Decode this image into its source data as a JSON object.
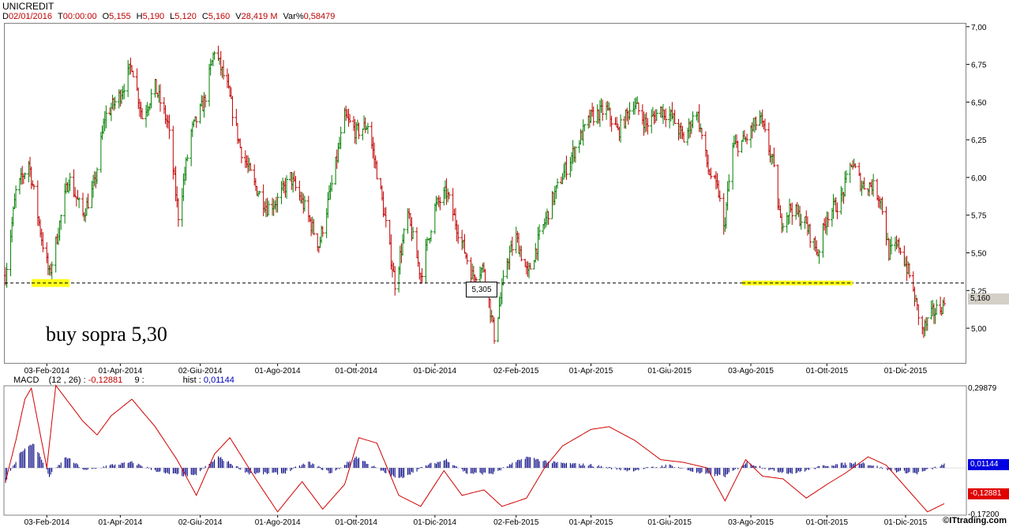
{
  "header": {
    "title": "UNICREDIT",
    "ohlc": [
      {
        "k": "D",
        "v": "02/01/2016"
      },
      {
        "k": "T",
        "v": "00:00:00"
      },
      {
        "k": "O",
        "v": "5,155"
      },
      {
        "k": "H",
        "v": "5,190"
      },
      {
        "k": "L",
        "v": "5,120"
      },
      {
        "k": "C",
        "v": "5,160"
      },
      {
        "k": "V",
        "v": "28,419 M"
      },
      {
        "k": "Var%",
        "v": "0,58479"
      }
    ]
  },
  "annotations": {
    "buy_text": "buy sopra 5,30",
    "callout_value": "5,305",
    "last_price_tag": "5,160",
    "macd_tag": "-0,12881",
    "hist_tag": "0,01144",
    "brand": "©ITtrading.com"
  },
  "macd_header": {
    "label": "MACD",
    "params": "(12 , 26)  :",
    "value": "-0,12881",
    "signal": "9  :",
    "hist_label": "hist :",
    "hist_value": "0,01144"
  },
  "colors": {
    "up": "#008000",
    "down": "#c00000",
    "macd_line": "#d00000",
    "hist": "#000080",
    "highlight": "#ffff00",
    "support_line": "#000000"
  },
  "chart_data": [
    {
      "type": "candlestick",
      "title": "UNICREDIT",
      "x_ticks": [
        "03-Feb-2014",
        "01-Apr-2014",
        "02-Giu-2014",
        "01-Ago-2014",
        "01-Ott-2014",
        "01-Dic-2014",
        "02-Feb-2015",
        "01-Apr-2015",
        "01-Giu-2015",
        "03-Ago-2015",
        "01-Ott-2015",
        "01-Dic-2015"
      ],
      "y_ticks": [
        "7,00",
        "6,75",
        "6,50",
        "6,25",
        "6,00",
        "5,75",
        "5,50",
        "5,25",
        "5,00"
      ],
      "ylim": [
        4.77,
        7.02
      ],
      "support_level": 5.3,
      "anchors": [
        {
          "d": "2014-01-02",
          "p": 5.35
        },
        {
          "d": "2014-01-10",
          "p": 5.9
        },
        {
          "d": "2014-01-20",
          "p": 6.1
        },
        {
          "d": "2014-01-30",
          "p": 5.6
        },
        {
          "d": "2014-02-05",
          "p": 5.35
        },
        {
          "d": "2014-02-12",
          "p": 5.65
        },
        {
          "d": "2014-02-20",
          "p": 6.0
        },
        {
          "d": "2014-03-03",
          "p": 5.75
        },
        {
          "d": "2014-03-12",
          "p": 5.95
        },
        {
          "d": "2014-03-20",
          "p": 6.4
        },
        {
          "d": "2014-04-01",
          "p": 6.55
        },
        {
          "d": "2014-04-10",
          "p": 6.75
        },
        {
          "d": "2014-04-18",
          "p": 6.4
        },
        {
          "d": "2014-04-28",
          "p": 6.6
        },
        {
          "d": "2014-05-08",
          "p": 6.35
        },
        {
          "d": "2014-05-16",
          "p": 5.75
        },
        {
          "d": "2014-05-26",
          "p": 6.3
        },
        {
          "d": "2014-06-05",
          "p": 6.5
        },
        {
          "d": "2014-06-13",
          "p": 6.85
        },
        {
          "d": "2014-06-23",
          "p": 6.6
        },
        {
          "d": "2014-07-03",
          "p": 6.2
        },
        {
          "d": "2014-07-14",
          "p": 5.95
        },
        {
          "d": "2014-07-24",
          "p": 5.8
        },
        {
          "d": "2014-08-01",
          "p": 5.85
        },
        {
          "d": "2014-08-11",
          "p": 6.0
        },
        {
          "d": "2014-08-22",
          "p": 5.8
        },
        {
          "d": "2014-09-02",
          "p": 5.55
        },
        {
          "d": "2014-09-12",
          "p": 5.95
        },
        {
          "d": "2014-09-22",
          "p": 6.4
        },
        {
          "d": "2014-10-01",
          "p": 6.3
        },
        {
          "d": "2014-10-10",
          "p": 6.35
        },
        {
          "d": "2014-10-20",
          "p": 5.9
        },
        {
          "d": "2014-10-31",
          "p": 5.3
        },
        {
          "d": "2014-11-10",
          "p": 5.75
        },
        {
          "d": "2014-11-20",
          "p": 5.35
        },
        {
          "d": "2014-12-01",
          "p": 5.8
        },
        {
          "d": "2014-12-10",
          "p": 5.9
        },
        {
          "d": "2014-12-19",
          "p": 5.65
        },
        {
          "d": "2014-12-30",
          "p": 5.35
        },
        {
          "d": "2015-01-08",
          "p": 5.4
        },
        {
          "d": "2015-01-16",
          "p": 4.95
        },
        {
          "d": "2015-01-26",
          "p": 5.45
        },
        {
          "d": "2015-02-02",
          "p": 5.6
        },
        {
          "d": "2015-02-11",
          "p": 5.35
        },
        {
          "d": "2015-02-20",
          "p": 5.6
        },
        {
          "d": "2015-03-02",
          "p": 5.85
        },
        {
          "d": "2015-03-12",
          "p": 6.05
        },
        {
          "d": "2015-03-23",
          "p": 6.25
        },
        {
          "d": "2015-04-01",
          "p": 6.4
        },
        {
          "d": "2015-04-13",
          "p": 6.45
        },
        {
          "d": "2015-04-22",
          "p": 6.3
        },
        {
          "d": "2015-05-04",
          "p": 6.5
        },
        {
          "d": "2015-05-14",
          "p": 6.35
        },
        {
          "d": "2015-05-25",
          "p": 6.45
        },
        {
          "d": "2015-06-03",
          "p": 6.4
        },
        {
          "d": "2015-06-12",
          "p": 6.25
        },
        {
          "d": "2015-06-22",
          "p": 6.45
        },
        {
          "d": "2015-07-01",
          "p": 6.05
        },
        {
          "d": "2015-07-09",
          "p": 5.9
        },
        {
          "d": "2015-07-13",
          "p": 5.65
        },
        {
          "d": "2015-07-20",
          "p": 6.2
        },
        {
          "d": "2015-07-30",
          "p": 6.25
        },
        {
          "d": "2015-08-10",
          "p": 6.4
        },
        {
          "d": "2015-08-20",
          "p": 6.1
        },
        {
          "d": "2015-08-26",
          "p": 5.7
        },
        {
          "d": "2015-09-03",
          "p": 5.8
        },
        {
          "d": "2015-09-14",
          "p": 5.7
        },
        {
          "d": "2015-09-24",
          "p": 5.5
        },
        {
          "d": "2015-10-01",
          "p": 5.75
        },
        {
          "d": "2015-10-12",
          "p": 5.85
        },
        {
          "d": "2015-10-20",
          "p": 6.1
        },
        {
          "d": "2015-10-28",
          "p": 5.95
        },
        {
          "d": "2015-11-05",
          "p": 5.95
        },
        {
          "d": "2015-11-12",
          "p": 5.85
        },
        {
          "d": "2015-11-18",
          "p": 5.5
        },
        {
          "d": "2015-11-26",
          "p": 5.55
        },
        {
          "d": "2015-12-04",
          "p": 5.35
        },
        {
          "d": "2015-12-14",
          "p": 4.98
        },
        {
          "d": "2015-12-22",
          "p": 5.1
        },
        {
          "d": "2015-12-31",
          "p": 5.16
        }
      ]
    },
    {
      "type": "line",
      "title": "MACD",
      "y_ticks": [
        "0,29879",
        "-0,17200"
      ],
      "ylim": [
        -0.172,
        0.29879
      ],
      "series": [
        {
          "name": "MACD",
          "anchors": [
            {
              "d": "2014-01-02",
              "v": -0.05
            },
            {
              "d": "2014-01-10",
              "v": 0.1
            },
            {
              "d": "2014-01-17",
              "v": 0.25
            },
            {
              "d": "2014-01-22",
              "v": 0.29
            },
            {
              "d": "2014-02-03",
              "v": 0.0
            },
            {
              "d": "2014-02-10",
              "v": 0.3
            },
            {
              "d": "2014-03-03",
              "v": 0.17
            },
            {
              "d": "2014-03-14",
              "v": 0.12
            },
            {
              "d": "2014-03-25",
              "v": 0.19
            },
            {
              "d": "2014-04-10",
              "v": 0.25
            },
            {
              "d": "2014-04-28",
              "v": 0.15
            },
            {
              "d": "2014-05-15",
              "v": 0.03
            },
            {
              "d": "2014-05-30",
              "v": -0.1
            },
            {
              "d": "2014-06-13",
              "v": 0.05
            },
            {
              "d": "2014-06-25",
              "v": 0.11
            },
            {
              "d": "2014-07-15",
              "v": -0.04
            },
            {
              "d": "2014-08-01",
              "v": -0.16
            },
            {
              "d": "2014-08-20",
              "v": -0.05
            },
            {
              "d": "2014-09-05",
              "v": -0.15
            },
            {
              "d": "2014-09-22",
              "v": -0.06
            },
            {
              "d": "2014-10-03",
              "v": 0.11
            },
            {
              "d": "2014-10-17",
              "v": 0.09
            },
            {
              "d": "2014-11-03",
              "v": -0.1
            },
            {
              "d": "2014-11-20",
              "v": -0.14
            },
            {
              "d": "2014-12-08",
              "v": -0.01
            },
            {
              "d": "2014-12-22",
              "v": -0.1
            },
            {
              "d": "2015-01-08",
              "v": -0.08
            },
            {
              "d": "2015-01-22",
              "v": -0.14
            },
            {
              "d": "2015-02-10",
              "v": -0.11
            },
            {
              "d": "2015-02-24",
              "v": 0.0
            },
            {
              "d": "2015-03-10",
              "v": 0.08
            },
            {
              "d": "2015-04-01",
              "v": 0.14
            },
            {
              "d": "2015-04-15",
              "v": 0.15
            },
            {
              "d": "2015-05-05",
              "v": 0.1
            },
            {
              "d": "2015-05-25",
              "v": 0.03
            },
            {
              "d": "2015-06-12",
              "v": 0.02
            },
            {
              "d": "2015-06-30",
              "v": 0.0
            },
            {
              "d": "2015-07-14",
              "v": -0.12
            },
            {
              "d": "2015-07-30",
              "v": 0.03
            },
            {
              "d": "2015-08-12",
              "v": -0.03
            },
            {
              "d": "2015-08-28",
              "v": -0.04
            },
            {
              "d": "2015-09-15",
              "v": -0.11
            },
            {
              "d": "2015-10-01",
              "v": -0.06
            },
            {
              "d": "2015-10-15",
              "v": -0.02
            },
            {
              "d": "2015-11-02",
              "v": 0.04
            },
            {
              "d": "2015-11-16",
              "v": 0.01
            },
            {
              "d": "2015-12-01",
              "v": -0.07
            },
            {
              "d": "2015-12-18",
              "v": -0.16
            },
            {
              "d": "2015-12-31",
              "v": -0.13
            }
          ]
        },
        {
          "name": "hist",
          "anchors": [
            {
              "d": "2014-01-02",
              "v": -0.05
            },
            {
              "d": "2014-01-14",
              "v": 0.06
            },
            {
              "d": "2014-01-24",
              "v": 0.09
            },
            {
              "d": "2014-02-05",
              "v": -0.03
            },
            {
              "d": "2014-02-18",
              "v": 0.04
            },
            {
              "d": "2014-03-05",
              "v": -0.01
            },
            {
              "d": "2014-03-25",
              "v": 0.01
            },
            {
              "d": "2014-04-10",
              "v": 0.02
            },
            {
              "d": "2014-05-05",
              "v": -0.02
            },
            {
              "d": "2014-05-28",
              "v": -0.03
            },
            {
              "d": "2014-06-16",
              "v": 0.04
            },
            {
              "d": "2014-07-10",
              "v": -0.02
            },
            {
              "d": "2014-08-05",
              "v": -0.02
            },
            {
              "d": "2014-08-25",
              "v": 0.02
            },
            {
              "d": "2014-09-12",
              "v": -0.02
            },
            {
              "d": "2014-10-01",
              "v": 0.04
            },
            {
              "d": "2014-10-20",
              "v": -0.01
            },
            {
              "d": "2014-11-03",
              "v": -0.04
            },
            {
              "d": "2014-11-25",
              "v": 0.01
            },
            {
              "d": "2014-12-10",
              "v": 0.03
            },
            {
              "d": "2014-12-26",
              "v": -0.02
            },
            {
              "d": "2015-01-15",
              "v": -0.02
            },
            {
              "d": "2015-02-10",
              "v": 0.04
            },
            {
              "d": "2015-03-01",
              "v": 0.02
            },
            {
              "d": "2015-04-01",
              "v": 0.01
            },
            {
              "d": "2015-05-01",
              "v": -0.01
            },
            {
              "d": "2015-06-01",
              "v": 0.01
            },
            {
              "d": "2015-06-25",
              "v": -0.02
            },
            {
              "d": "2015-07-14",
              "v": -0.03
            },
            {
              "d": "2015-07-31",
              "v": 0.02
            },
            {
              "d": "2015-08-20",
              "v": -0.01
            },
            {
              "d": "2015-09-05",
              "v": -0.02
            },
            {
              "d": "2015-10-01",
              "v": 0.01
            },
            {
              "d": "2015-10-28",
              "v": 0.02
            },
            {
              "d": "2015-11-20",
              "v": -0.01
            },
            {
              "d": "2015-12-10",
              "v": -0.02
            },
            {
              "d": "2015-12-31",
              "v": 0.01144
            }
          ]
        }
      ],
      "signal_period": 9
    }
  ]
}
